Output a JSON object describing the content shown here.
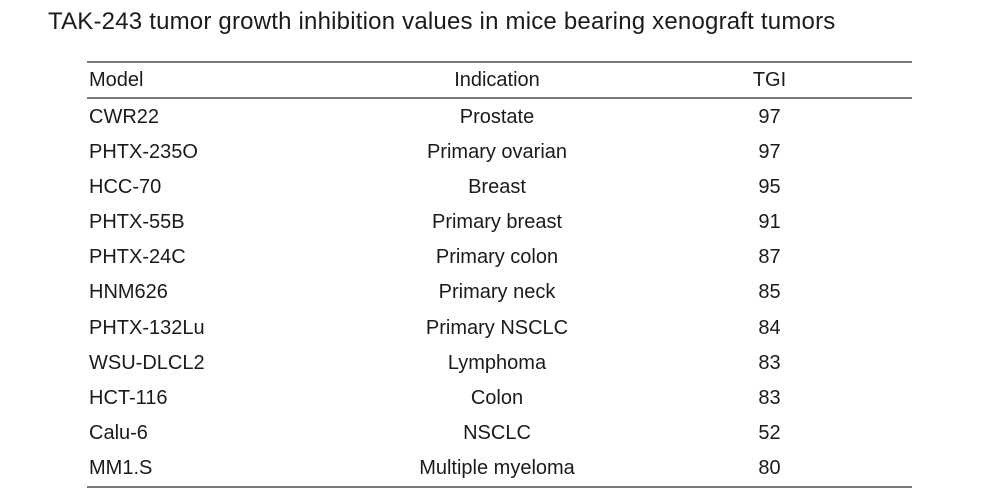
{
  "title": "TAK-243 tumor growth inhibition values in mice bearing xenograft tumors",
  "table": {
    "columns": [
      "Model",
      "Indication",
      "TGI"
    ],
    "rows": [
      {
        "model": "CWR22",
        "indication": "Prostate",
        "tgi": "97"
      },
      {
        "model": "PHTX-235O",
        "indication": "Primary ovarian",
        "tgi": "97"
      },
      {
        "model": "HCC-70",
        "indication": "Breast",
        "tgi": "95"
      },
      {
        "model": "PHTX-55B",
        "indication": "Primary breast",
        "tgi": "91"
      },
      {
        "model": "PHTX-24C",
        "indication": "Primary colon",
        "tgi": "87"
      },
      {
        "model": "HNM626",
        "indication": "Primary neck",
        "tgi": "85"
      },
      {
        "model": "PHTX-132Lu",
        "indication": "Primary NSCLC",
        "tgi": "84"
      },
      {
        "model": "WSU-DLCL2",
        "indication": "Lymphoma",
        "tgi": "83"
      },
      {
        "model": "HCT-116",
        "indication": "Colon",
        "tgi": "83"
      },
      {
        "model": "Calu-6",
        "indication": "NSCLC",
        "tgi": "52"
      },
      {
        "model": "MM1.S",
        "indication": "Multiple myeloma",
        "tgi": "80"
      }
    ]
  },
  "chart_data": {
    "type": "table",
    "title": "TAK-243 tumor growth inhibition values in mice bearing xenograft tumors",
    "columns": [
      "Model",
      "Indication",
      "TGI"
    ],
    "rows": [
      [
        "CWR22",
        "Prostate",
        97
      ],
      [
        "PHTX-235O",
        "Primary ovarian",
        97
      ],
      [
        "HCC-70",
        "Breast",
        95
      ],
      [
        "PHTX-55B",
        "Primary breast",
        91
      ],
      [
        "PHTX-24C",
        "Primary colon",
        87
      ],
      [
        "HNM626",
        "Primary neck",
        85
      ],
      [
        "PHTX-132Lu",
        "Primary NSCLC",
        84
      ],
      [
        "WSU-DLCL2",
        "Lymphoma",
        83
      ],
      [
        "HCT-116",
        "Colon",
        83
      ],
      [
        "Calu-6",
        "NSCLC",
        52
      ],
      [
        "MM1.S",
        "Multiple myeloma",
        80
      ]
    ]
  },
  "colors": {
    "text": "#1b1b1b",
    "rule": "#7a7a7a",
    "background": "#ffffff"
  }
}
